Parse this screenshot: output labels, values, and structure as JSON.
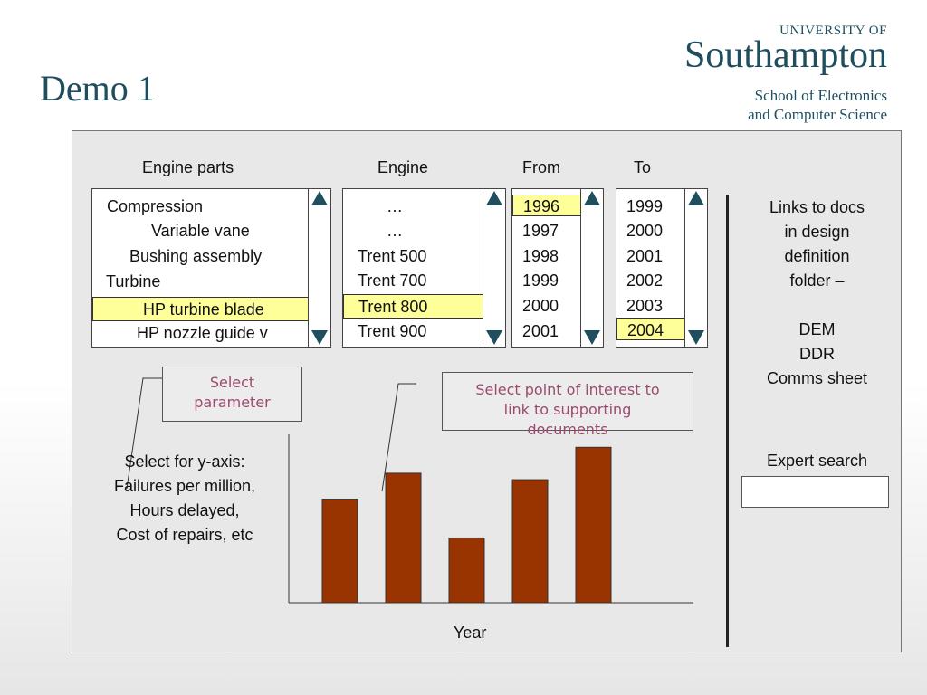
{
  "slide": {
    "title": "Demo 1"
  },
  "logo": {
    "line1": "UNIVERSITY OF",
    "line2": "Southampton",
    "line3": "School of Electronics",
    "line4": "and Computer Science"
  },
  "headers": {
    "engine_parts": "Engine parts",
    "engine": "Engine",
    "from": "From",
    "to": "To"
  },
  "engine_parts": {
    "items": [
      "Compression",
      "Variable vane",
      "Bushing assembly",
      "Turbine",
      "HP turbine blade",
      "HP nozzle guide v"
    ],
    "selected": "HP turbine blade"
  },
  "engine": {
    "items": [
      "…",
      "…",
      "Trent 500",
      "Trent 700",
      "Trent 800",
      "Trent 900"
    ],
    "selected": "Trent 800"
  },
  "from": {
    "items": [
      "1996",
      "1997",
      "1998",
      "1999",
      "2000",
      "2001"
    ],
    "selected": "1996"
  },
  "to": {
    "items": [
      "1999",
      "2000",
      "2001",
      "2002",
      "2003",
      "2004"
    ],
    "selected": "2004"
  },
  "callouts": {
    "select_parameter": [
      "Select",
      "parameter"
    ],
    "select_point": [
      "Select point of interest to",
      "link to supporting",
      "documents"
    ]
  },
  "yaxis_options": [
    "Select for y-axis:",
    "Failures per million,",
    "Hours delayed,",
    "Cost of repairs, etc"
  ],
  "side": {
    "links": [
      "Links to docs",
      "in design",
      "definition",
      "folder –"
    ],
    "docs": [
      "DEM",
      "DDR",
      "Comms sheet"
    ],
    "expert_search_label": "Expert search",
    "expert_search_value": ""
  },
  "chart_data": {
    "type": "bar",
    "xlabel": "Year",
    "ylabel": "",
    "title": "",
    "values": [
      4.0,
      5.0,
      2.5,
      4.75,
      6.0
    ],
    "ylim": [
      0,
      6.5
    ],
    "bar_color": "#993300"
  },
  "colors": {
    "accent": "#1f4e5f",
    "highlight": "#ffff99",
    "callout_text": "#9c4a6e",
    "bar": "#993300"
  }
}
